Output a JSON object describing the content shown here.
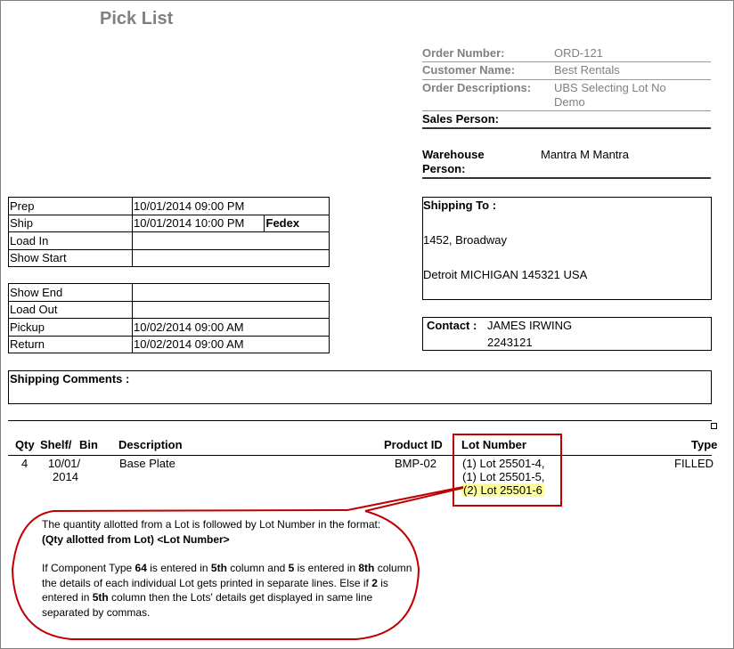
{
  "title": "Pick List",
  "order": {
    "order_number_label": "Order Number:",
    "order_number": "ORD-121",
    "customer_name_label": "Customer Name:",
    "customer_name": "Best Rentals",
    "order_desc_label": "Order Descriptions:",
    "order_desc_line1": "UBS Selecting Lot No",
    "order_desc_line2": "Demo",
    "sales_person_label": "Sales Person:",
    "warehouse_label_1": "Warehouse",
    "warehouse_label_2": "Person:",
    "warehouse_person": "Mantra M Mantra"
  },
  "schedule": [
    {
      "label": "Prep",
      "value": "10/01/2014 09:00 PM"
    },
    {
      "label": "Ship",
      "value": "10/01/2014 10:00 PM",
      "carrier": "Fedex"
    },
    {
      "label": "Load In",
      "value": ""
    },
    {
      "label": "Show Start",
      "value": ""
    },
    {
      "label": "Show End",
      "value": ""
    },
    {
      "label": "Load Out",
      "value": ""
    },
    {
      "label": "Pickup",
      "value": "10/02/2014 09:00 AM"
    },
    {
      "label": "Return",
      "value": "10/02/2014 09:00 AM"
    }
  ],
  "shipping": {
    "label": "Shipping To :",
    "line1": "1452, Broadway",
    "line2": "Detroit MICHIGAN 145321 USA"
  },
  "contact": {
    "label": "Contact :",
    "name": "JAMES IRWING",
    "phone": "2243121"
  },
  "comments": {
    "label": "Shipping Comments :"
  },
  "table": {
    "headers": {
      "qty": "Qty",
      "shelf": "Shelf/",
      "bin": "Bin",
      "description": "Description",
      "product_id": "Product ID",
      "lot_number": "Lot Number",
      "type": "Type"
    },
    "rows": [
      {
        "qty": "4",
        "shelf_1": "10/01/",
        "shelf_2": "2014",
        "description": "Base Plate",
        "product_id": "BMP-02",
        "lots": [
          "(1) Lot 25501-4,",
          "(1) Lot 25501-5,",
          "(2) Lot 25501-6"
        ],
        "type": "FILLED"
      }
    ]
  },
  "callout": {
    "p1": "The quantity allotted from a Lot is followed by Lot Number in the format:",
    "p1_bold": "(Qty allotted from Lot) <Lot Number>",
    "p2": [
      "If Component Type ",
      "64",
      " is entered in ",
      "5th",
      " column and ",
      "5",
      " is entered in ",
      "8th",
      " column the details of each individual Lot gets printed in separate lines. Else if ",
      "2",
      " is entered in ",
      "5th",
      " column then the Lots' details get displayed in same line separated by commas."
    ],
    "color": "#c00000",
    "highlight": "#ffff99"
  }
}
